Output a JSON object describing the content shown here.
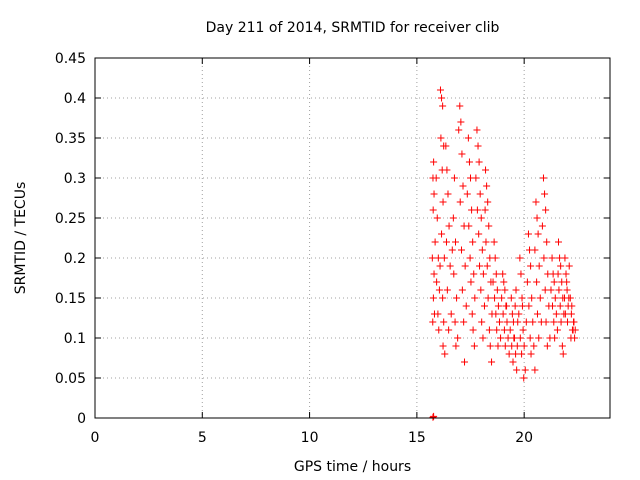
{
  "chart_data": {
    "type": "scatter",
    "title": "Day 211 of 2014, SRMTID for receiver clib",
    "xlabel": "GPS time / hours",
    "ylabel": "SRMTID / TECUs",
    "xlim": [
      0,
      24
    ],
    "ylim": [
      0,
      0.45
    ],
    "xticks": [
      0,
      5,
      10,
      15,
      20
    ],
    "yticks": [
      0,
      0.05,
      0.1,
      0.15,
      0.2,
      0.25,
      0.3,
      0.35,
      0.4,
      0.45
    ],
    "grid": true,
    "marker": "plus",
    "color": "#ff0000",
    "series": [
      {
        "name": "SRMTID",
        "points": [
          [
            15.75,
            0.001
          ],
          [
            15.78,
            0.002
          ],
          [
            15.72,
            0.2
          ],
          [
            15.75,
            0.3
          ],
          [
            15.78,
            0.32
          ],
          [
            15.8,
            0.28
          ],
          [
            15.76,
            0.26
          ],
          [
            15.8,
            0.18
          ],
          [
            15.77,
            0.15
          ],
          [
            15.82,
            0.13
          ],
          [
            15.74,
            0.12
          ],
          [
            15.85,
            0.22
          ],
          [
            15.9,
            0.3
          ],
          [
            15.95,
            0.25
          ],
          [
            16.0,
            0.2
          ],
          [
            15.92,
            0.17
          ],
          [
            16.05,
            0.16
          ],
          [
            15.98,
            0.13
          ],
          [
            16.02,
            0.11
          ],
          [
            16.08,
            0.19
          ],
          [
            16.1,
            0.41
          ],
          [
            16.15,
            0.4
          ],
          [
            16.2,
            0.39
          ],
          [
            16.12,
            0.35
          ],
          [
            16.25,
            0.34
          ],
          [
            16.18,
            0.31
          ],
          [
            16.22,
            0.27
          ],
          [
            16.15,
            0.23
          ],
          [
            16.28,
            0.2
          ],
          [
            16.2,
            0.15
          ],
          [
            16.25,
            0.12
          ],
          [
            16.22,
            0.09
          ],
          [
            16.3,
            0.08
          ],
          [
            16.4,
            0.31
          ],
          [
            16.45,
            0.28
          ],
          [
            16.5,
            0.24
          ],
          [
            16.38,
            0.22
          ],
          [
            16.55,
            0.19
          ],
          [
            16.42,
            0.16
          ],
          [
            16.6,
            0.13
          ],
          [
            16.48,
            0.11
          ],
          [
            16.35,
            0.34
          ],
          [
            16.65,
            0.21
          ],
          [
            16.7,
            0.25
          ],
          [
            16.75,
            0.3
          ],
          [
            16.8,
            0.22
          ],
          [
            16.72,
            0.18
          ],
          [
            16.85,
            0.15
          ],
          [
            16.78,
            0.12
          ],
          [
            16.9,
            0.1
          ],
          [
            16.82,
            0.09
          ],
          [
            17.0,
            0.39
          ],
          [
            17.05,
            0.37
          ],
          [
            17.1,
            0.33
          ],
          [
            16.95,
            0.36
          ],
          [
            17.15,
            0.29
          ],
          [
            17.02,
            0.27
          ],
          [
            17.2,
            0.24
          ],
          [
            17.08,
            0.21
          ],
          [
            17.25,
            0.19
          ],
          [
            17.12,
            0.16
          ],
          [
            17.3,
            0.14
          ],
          [
            17.18,
            0.12
          ],
          [
            17.22,
            0.07
          ],
          [
            17.4,
            0.35
          ],
          [
            17.45,
            0.32
          ],
          [
            17.5,
            0.3
          ],
          [
            17.35,
            0.28
          ],
          [
            17.55,
            0.26
          ],
          [
            17.42,
            0.24
          ],
          [
            17.6,
            0.22
          ],
          [
            17.48,
            0.2
          ],
          [
            17.65,
            0.18
          ],
          [
            17.52,
            0.17
          ],
          [
            17.7,
            0.15
          ],
          [
            17.58,
            0.13
          ],
          [
            17.62,
            0.11
          ],
          [
            17.68,
            0.09
          ],
          [
            17.8,
            0.36
          ],
          [
            17.85,
            0.34
          ],
          [
            17.9,
            0.32
          ],
          [
            17.75,
            0.3
          ],
          [
            17.95,
            0.28
          ],
          [
            17.82,
            0.26
          ],
          [
            18.0,
            0.25
          ],
          [
            17.88,
            0.23
          ],
          [
            18.05,
            0.21
          ],
          [
            17.92,
            0.19
          ],
          [
            18.1,
            0.18
          ],
          [
            17.98,
            0.16
          ],
          [
            18.15,
            0.14
          ],
          [
            18.02,
            0.12
          ],
          [
            18.08,
            0.1
          ],
          [
            18.2,
            0.31
          ],
          [
            18.25,
            0.29
          ],
          [
            18.3,
            0.27
          ],
          [
            18.18,
            0.26
          ],
          [
            18.35,
            0.24
          ],
          [
            18.22,
            0.22
          ],
          [
            18.4,
            0.2
          ],
          [
            18.28,
            0.19
          ],
          [
            18.45,
            0.17
          ],
          [
            18.32,
            0.15
          ],
          [
            18.5,
            0.13
          ],
          [
            18.38,
            0.11
          ],
          [
            18.42,
            0.09
          ],
          [
            18.48,
            0.07
          ],
          [
            18.6,
            0.22
          ],
          [
            18.65,
            0.2
          ],
          [
            18.7,
            0.18
          ],
          [
            18.55,
            0.17
          ],
          [
            18.75,
            0.16
          ],
          [
            18.62,
            0.15
          ],
          [
            18.8,
            0.14
          ],
          [
            18.68,
            0.13
          ],
          [
            18.85,
            0.12
          ],
          [
            18.72,
            0.11
          ],
          [
            18.9,
            0.1
          ],
          [
            18.78,
            0.09
          ],
          [
            19.0,
            0.18
          ],
          [
            19.05,
            0.17
          ],
          [
            19.1,
            0.16
          ],
          [
            18.95,
            0.15
          ],
          [
            19.15,
            0.14
          ],
          [
            19.02,
            0.13
          ],
          [
            19.2,
            0.12
          ],
          [
            19.08,
            0.11
          ],
          [
            19.25,
            0.1
          ],
          [
            19.12,
            0.09
          ],
          [
            19.3,
            0.08
          ],
          [
            19.18,
            0.14
          ],
          [
            19.4,
            0.15
          ],
          [
            19.45,
            0.13
          ],
          [
            19.5,
            0.12
          ],
          [
            19.35,
            0.11
          ],
          [
            19.55,
            0.1
          ],
          [
            19.42,
            0.09
          ],
          [
            19.6,
            0.08
          ],
          [
            19.48,
            0.07
          ],
          [
            19.65,
            0.06
          ],
          [
            19.52,
            0.1
          ],
          [
            19.7,
            0.12
          ],
          [
            19.58,
            0.14
          ],
          [
            19.62,
            0.16
          ],
          [
            19.68,
            0.09
          ],
          [
            19.8,
            0.2
          ],
          [
            19.85,
            0.18
          ],
          [
            19.9,
            0.15
          ],
          [
            19.75,
            0.13
          ],
          [
            19.95,
            0.11
          ],
          [
            19.82,
            0.1
          ],
          [
            20.0,
            0.09
          ],
          [
            19.88,
            0.08
          ],
          [
            20.05,
            0.06
          ],
          [
            19.92,
            0.14
          ],
          [
            20.1,
            0.12
          ],
          [
            19.98,
            0.05
          ],
          [
            20.2,
            0.23
          ],
          [
            20.25,
            0.21
          ],
          [
            20.3,
            0.19
          ],
          [
            20.15,
            0.17
          ],
          [
            20.35,
            0.15
          ],
          [
            20.22,
            0.14
          ],
          [
            20.4,
            0.12
          ],
          [
            20.28,
            0.1
          ],
          [
            20.45,
            0.09
          ],
          [
            20.32,
            0.08
          ],
          [
            20.5,
            0.06
          ],
          [
            20.55,
            0.27
          ],
          [
            20.6,
            0.25
          ],
          [
            20.65,
            0.23
          ],
          [
            20.5,
            0.21
          ],
          [
            20.7,
            0.19
          ],
          [
            20.58,
            0.17
          ],
          [
            20.75,
            0.15
          ],
          [
            20.62,
            0.13
          ],
          [
            20.8,
            0.12
          ],
          [
            20.68,
            0.1
          ],
          [
            20.9,
            0.3
          ],
          [
            20.95,
            0.28
          ],
          [
            21.0,
            0.26
          ],
          [
            20.85,
            0.24
          ],
          [
            21.05,
            0.22
          ],
          [
            20.92,
            0.2
          ],
          [
            21.1,
            0.18
          ],
          [
            20.98,
            0.16
          ],
          [
            21.15,
            0.14
          ],
          [
            21.02,
            0.12
          ],
          [
            21.2,
            0.1
          ],
          [
            21.08,
            0.09
          ],
          [
            21.3,
            0.2
          ],
          [
            21.35,
            0.18
          ],
          [
            21.4,
            0.17
          ],
          [
            21.25,
            0.16
          ],
          [
            21.45,
            0.15
          ],
          [
            21.32,
            0.14
          ],
          [
            21.5,
            0.13
          ],
          [
            21.38,
            0.12
          ],
          [
            21.55,
            0.11
          ],
          [
            21.42,
            0.1
          ],
          [
            21.6,
            0.22
          ],
          [
            21.65,
            0.2
          ],
          [
            21.7,
            0.19
          ],
          [
            21.58,
            0.18
          ],
          [
            21.75,
            0.17
          ],
          [
            21.62,
            0.16
          ],
          [
            21.8,
            0.15
          ],
          [
            21.68,
            0.14
          ],
          [
            21.85,
            0.13
          ],
          [
            21.72,
            0.12
          ],
          [
            21.78,
            0.09
          ],
          [
            21.82,
            0.08
          ],
          [
            21.9,
            0.2
          ],
          [
            21.95,
            0.18
          ],
          [
            22.0,
            0.16
          ],
          [
            21.88,
            0.15
          ],
          [
            22.05,
            0.14
          ],
          [
            21.92,
            0.13
          ],
          [
            22.1,
            0.19
          ],
          [
            21.98,
            0.17
          ],
          [
            22.02,
            0.12
          ],
          [
            22.08,
            0.15
          ],
          [
            22.15,
            0.15
          ],
          [
            22.2,
            0.13
          ],
          [
            22.25,
            0.11
          ],
          [
            22.18,
            0.1
          ],
          [
            22.3,
            0.12
          ],
          [
            22.22,
            0.14
          ],
          [
            22.28,
            0.11
          ],
          [
            22.35,
            0.1
          ],
          [
            22.32,
            0.12
          ],
          [
            22.38,
            0.11
          ]
        ]
      }
    ]
  }
}
